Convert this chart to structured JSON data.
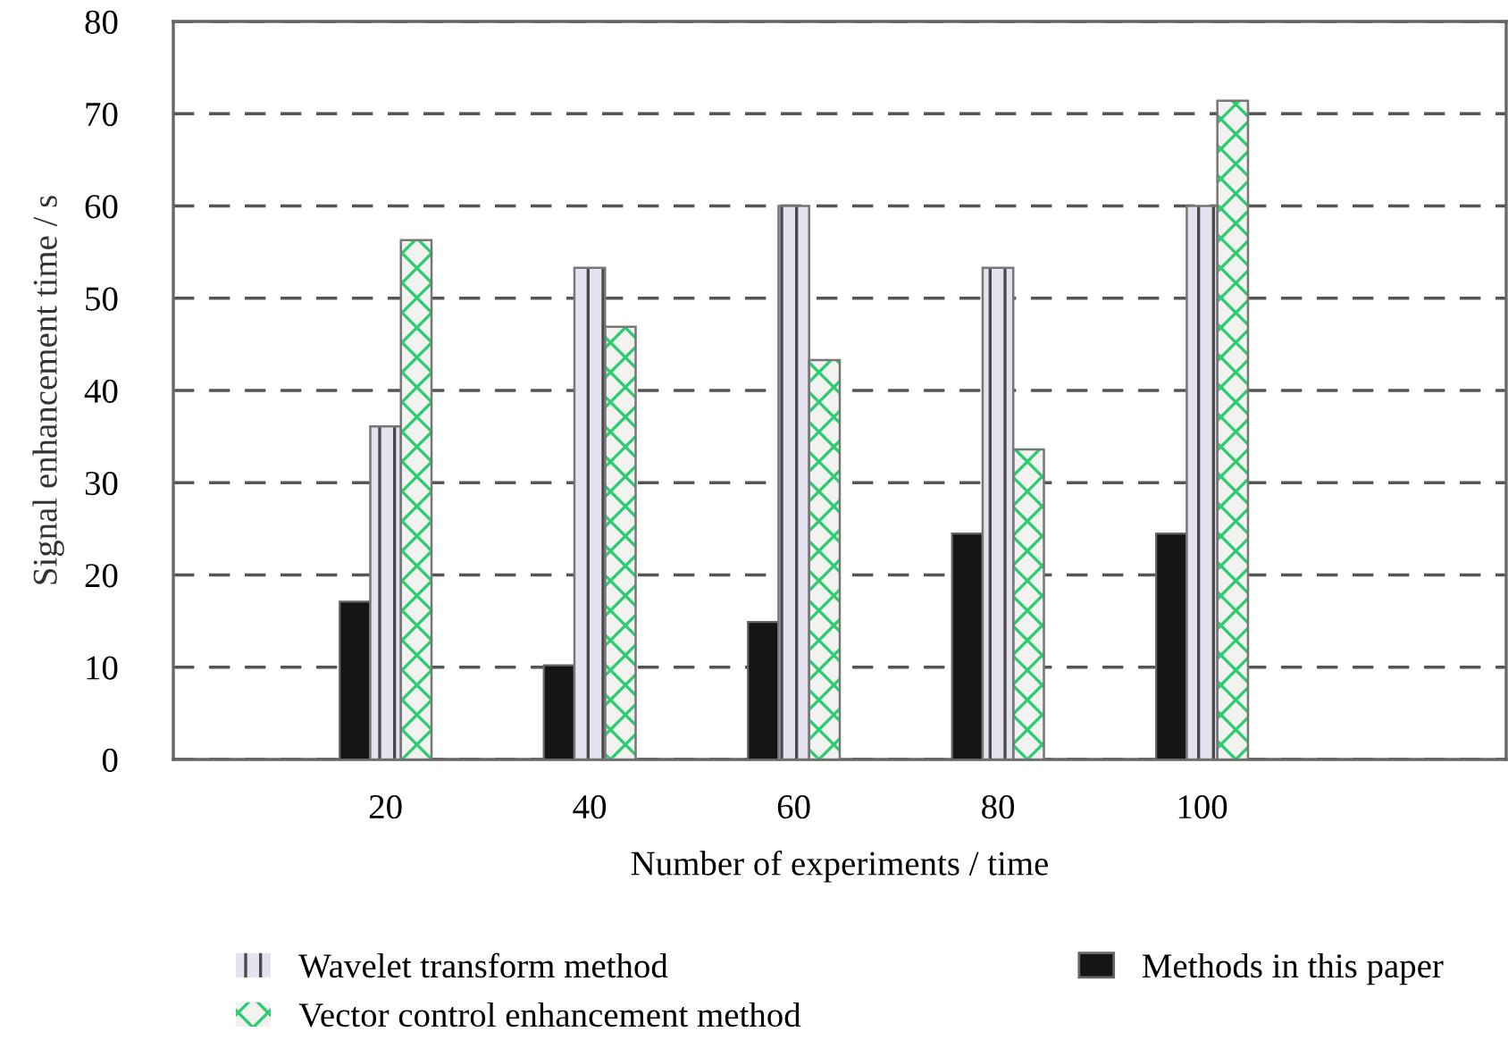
{
  "chart_data": {
    "type": "bar",
    "xlabel": "Number of experiments / time",
    "ylabel": "Signal enhancement time / s",
    "categories": [
      "20",
      "40",
      "60",
      "80",
      "100"
    ],
    "series": [
      {
        "name": "Methods in this paper",
        "color": "#151515",
        "values": [
          17.1,
          10.2,
          14.9,
          24.5,
          24.5
        ]
      },
      {
        "name": "Wavelet transform method",
        "color": "#e4e2ee",
        "values": [
          36.1,
          53.3,
          60,
          53.3,
          60
        ]
      },
      {
        "name": "Vector control enhancement method",
        "color": "#f2f2f0",
        "values": [
          56.3,
          46.9,
          43.3,
          33.6,
          71.4
        ]
      }
    ],
    "ylim": [
      0,
      80
    ],
    "yticks": [
      0,
      10,
      20,
      30,
      40,
      50,
      60,
      70,
      80
    ],
    "grid": "y",
    "legend": "bottom"
  }
}
